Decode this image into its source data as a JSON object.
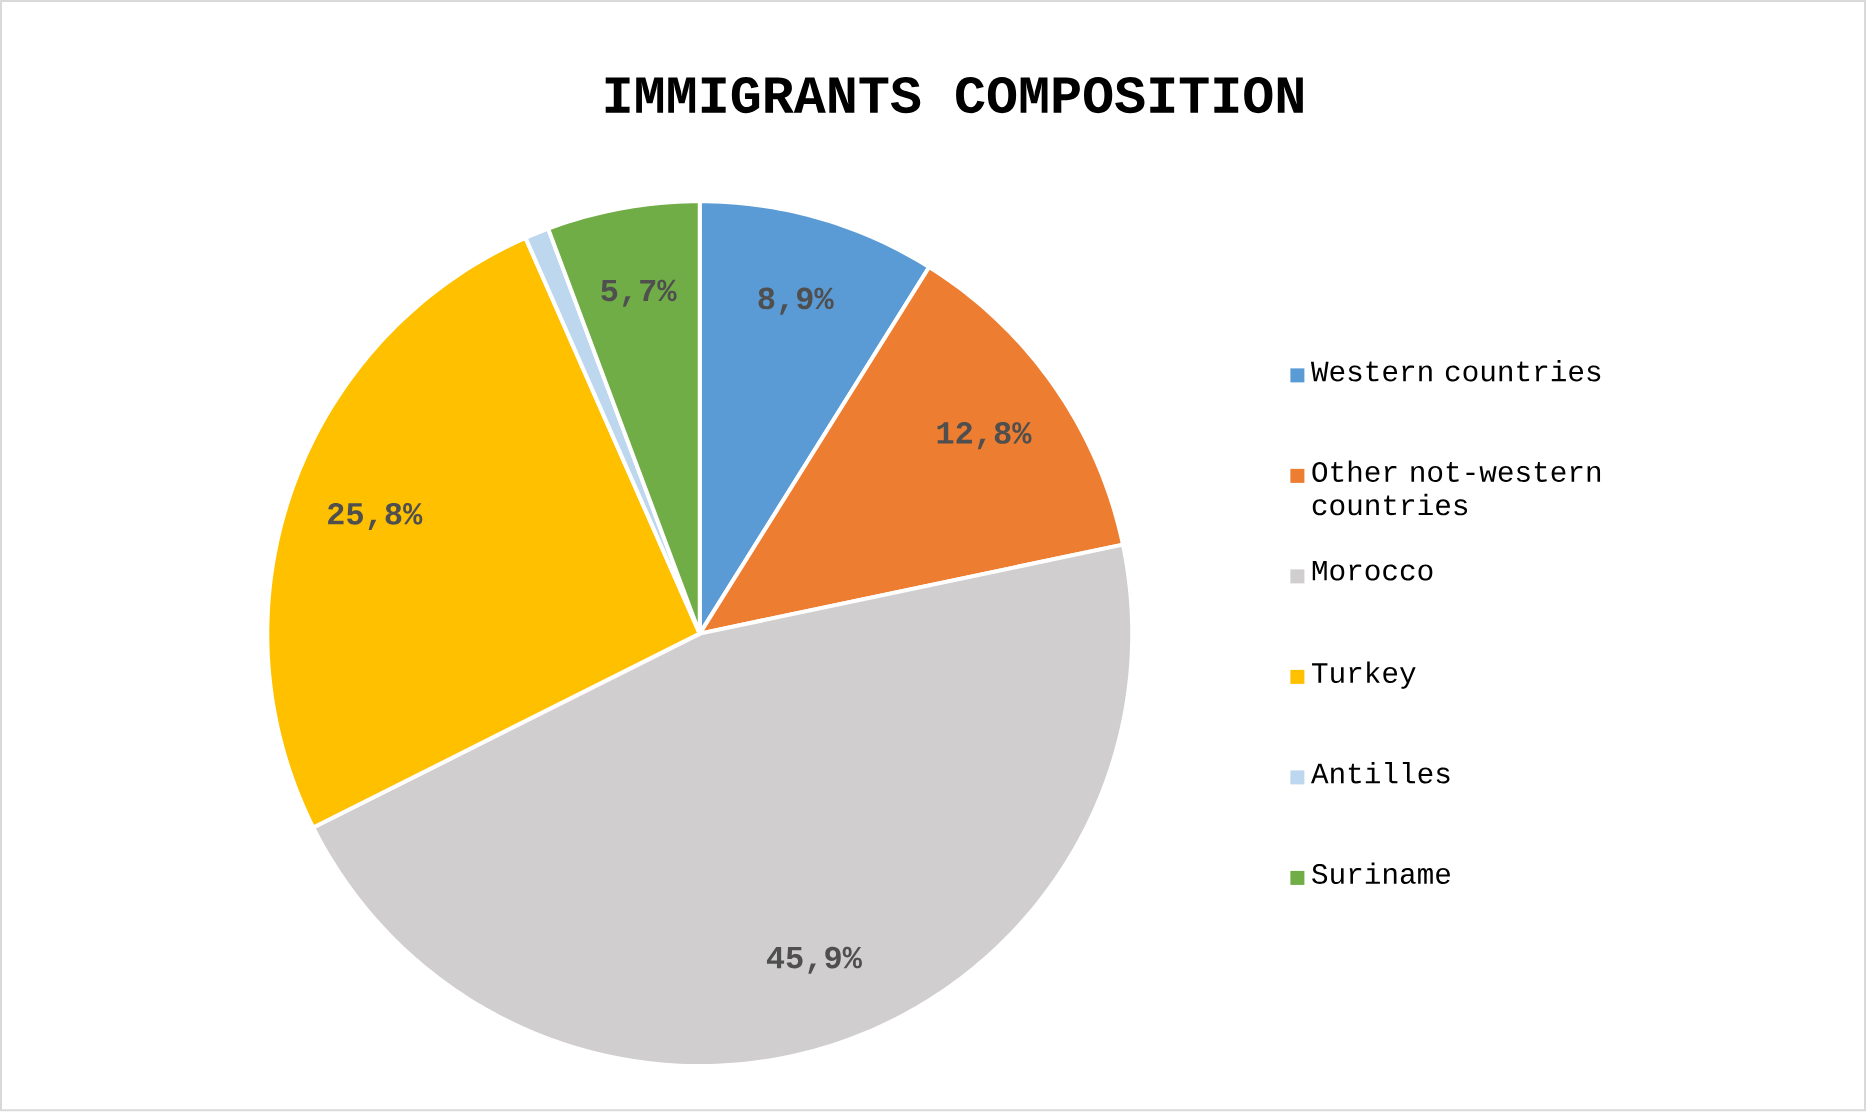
{
  "chart_data": {
    "type": "pie",
    "title": "IMMIGRANTS COMPOSITION",
    "categories": [
      "Western countries",
      "Other not-western countries",
      "Morocco",
      "Turkey",
      "Antilles",
      "Suriname"
    ],
    "values": [
      8.9,
      12.8,
      45.9,
      25.8,
      0.9,
      5.7
    ],
    "value_labels": [
      "8,9%",
      "12,8%",
      "45,9%",
      "25,8%",
      null,
      "5,7%"
    ],
    "colors": [
      "#5b9bd5",
      "#ed7d31",
      "#d0cece",
      "#ffc000",
      "#bdd7ee",
      "#70ad47"
    ],
    "legend": "right"
  }
}
